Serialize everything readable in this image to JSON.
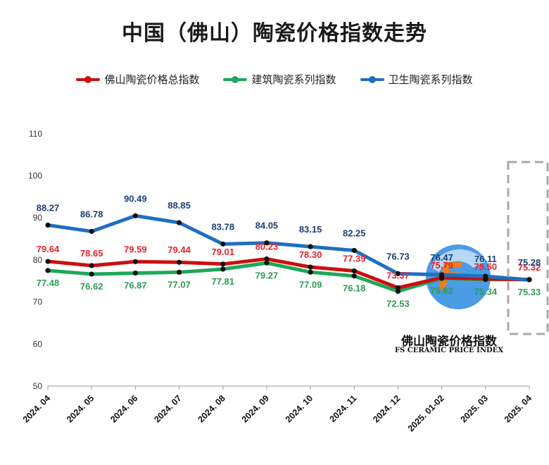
{
  "title": "中国（佛山）陶瓷价格指数走势",
  "legend": [
    {
      "label": "佛山陶瓷价格总指数",
      "color": "#cc0f0f"
    },
    {
      "label": "建筑陶瓷系列指数",
      "color": "#1ea85a"
    },
    {
      "label": "卫生陶瓷系列指数",
      "color": "#1f6fc0"
    }
  ],
  "logo": {
    "text_cn": "佛山陶瓷价格指数",
    "text_en": "FS CERAMIC PRICE INDEX",
    "letter": "F"
  },
  "chart_data": {
    "type": "line",
    "categories": [
      "2024. 04",
      "2024. 05",
      "2024. 06",
      "2024. 07",
      "2024. 08",
      "2024. 09",
      "2024. 10",
      "2024. 11",
      "2024. 12",
      "2025. 01-02",
      "2025. 03",
      "2025. 04"
    ],
    "yticks": [
      50,
      60,
      70,
      80,
      90,
      100,
      110
    ],
    "ylim": [
      50,
      110
    ],
    "grid": false,
    "legend_position": "top",
    "series": [
      {
        "name": "佛山陶瓷价格总指数",
        "color": "#cc0f0f",
        "label_color": "#e8212b",
        "values": [
          79.64,
          78.65,
          79.59,
          79.44,
          79.01,
          80.23,
          78.3,
          77.39,
          73.37,
          75.79,
          75.5,
          75.32
        ],
        "labels": [
          "79.64",
          "78.65",
          "79.59",
          "79.44",
          "79.01",
          "80.23",
          "78.30",
          "77.39",
          "73.37",
          "75.79",
          "75.50",
          "75.32"
        ]
      },
      {
        "name": "建筑陶瓷系列指数",
        "color": "#1ea85a",
        "label_color": "#2f9a55",
        "values": [
          77.48,
          76.62,
          76.87,
          77.07,
          77.81,
          79.27,
          77.09,
          76.18,
          72.53,
          75.62,
          75.34,
          75.33
        ],
        "labels": [
          "77.48",
          "76.62",
          "76.87",
          "77.07",
          "77.81",
          "79.27",
          "77.09",
          "76.18",
          "72.53",
          "75.62",
          "75.34",
          "75.33"
        ]
      },
      {
        "name": "卫生陶瓷系列指数",
        "color": "#1f6fc0",
        "label_color": "#1c3f78",
        "values": [
          88.27,
          86.78,
          90.49,
          88.85,
          83.78,
          84.05,
          83.15,
          82.25,
          76.73,
          76.47,
          76.11,
          75.28
        ],
        "labels": [
          "88.27",
          "86.78",
          "90.49",
          "88.85",
          "83.78",
          "84.05",
          "83.15",
          "82.25",
          "76.73",
          "76.47",
          "76.11",
          "75.28"
        ]
      }
    ]
  }
}
